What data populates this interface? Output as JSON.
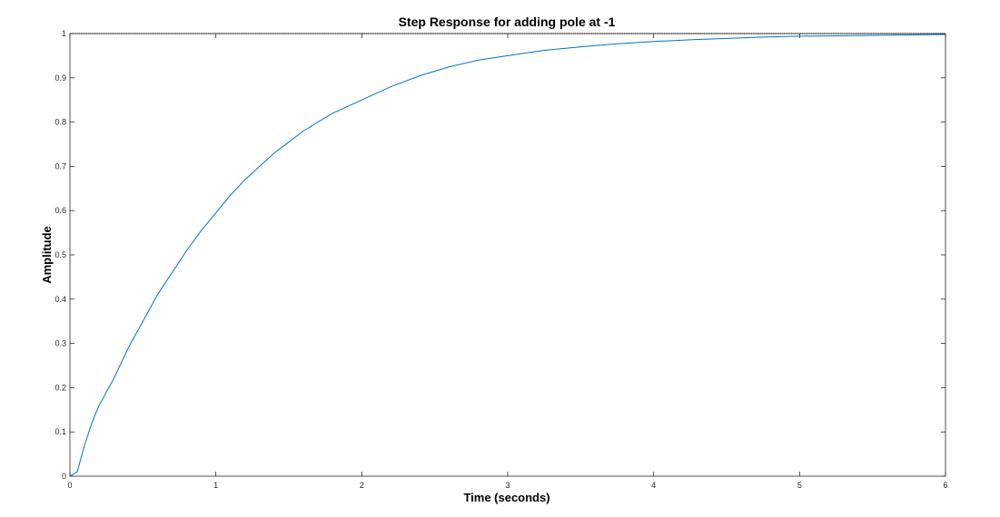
{
  "chart_data": {
    "type": "line",
    "title": "Step Response for adding pole at -1",
    "xlabel": "Time (seconds)",
    "ylabel": "Amplitude",
    "xlim": [
      0,
      6
    ],
    "ylim": [
      0,
      1
    ],
    "xticks": [
      "0",
      "1",
      "2",
      "3",
      "4",
      "5",
      "6"
    ],
    "yticks": [
      "0",
      "0.1",
      "0.2",
      "0.3",
      "0.4",
      "0.5",
      "0.6",
      "0.7",
      "0.8",
      "0.9",
      "1"
    ],
    "grid": false,
    "reference_line": 1,
    "series": [
      {
        "color": "#0072bd",
        "x": [
          0,
          0.05,
          0.1,
          0.15,
          0.2,
          0.25,
          0.3,
          0.4,
          0.5,
          0.6,
          0.7,
          0.8,
          0.9,
          1.0,
          1.1,
          1.2,
          1.3,
          1.4,
          1.5,
          1.6,
          1.7,
          1.8,
          1.9,
          2.0,
          2.2,
          2.4,
          2.6,
          2.8,
          3.0,
          3.25,
          3.5,
          3.75,
          4.0,
          4.25,
          4.5,
          4.75,
          5.0,
          5.25,
          5.5,
          5.75,
          6.0
        ],
        "values": [
          0,
          0.01,
          0.07,
          0.12,
          0.16,
          0.19,
          0.22,
          0.29,
          0.35,
          0.41,
          0.46,
          0.51,
          0.555,
          0.595,
          0.635,
          0.67,
          0.7,
          0.73,
          0.755,
          0.78,
          0.8,
          0.82,
          0.835,
          0.85,
          0.88,
          0.905,
          0.925,
          0.94,
          0.95,
          0.962,
          0.97,
          0.977,
          0.982,
          0.986,
          0.989,
          0.992,
          0.994,
          0.995,
          0.996,
          0.997,
          0.998
        ]
      }
    ]
  }
}
